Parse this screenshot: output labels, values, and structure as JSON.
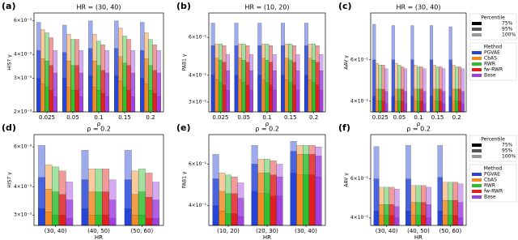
{
  "chart_data": [
    {
      "type": "bar",
      "panel_label": "(a)",
      "title": "HR = (30, 40)",
      "xlabel": "ρ",
      "ylabel": "HIS7 γ",
      "log_scale": true,
      "categories": [
        "0.025",
        "0.05",
        "0.1",
        "0.15",
        "0.2"
      ],
      "ylim": [
        0.002,
        0.0066
      ],
      "yticks": [
        {
          "value": 0.002,
          "label": "2×10⁻³"
        },
        {
          "value": 0.003,
          "label": "3×10⁻³"
        },
        {
          "value": 0.004,
          "label": "4×10⁻³"
        },
        {
          "value": 0.006,
          "label": "6×10⁻³"
        }
      ],
      "series": [
        {
          "name": "PGVAE",
          "color": "#2544d8",
          "values": [
            0.0059,
            0.0057,
            0.006,
            0.006,
            0.0059
          ],
          "p95": [
            0.0042,
            0.0041,
            0.0043,
            0.0043,
            0.0042
          ],
          "p75": [
            0.003,
            0.003,
            0.0031,
            0.0031,
            0.003
          ]
        },
        {
          "name": "CbAS",
          "color": "#f08a24",
          "values": [
            0.0054,
            0.0051,
            0.0051,
            0.0055,
            0.0052
          ],
          "p95": [
            0.0038,
            0.0037,
            0.0037,
            0.0039,
            0.0038
          ],
          "p75": [
            0.0028,
            0.0027,
            0.0027,
            0.0029,
            0.0028
          ]
        },
        {
          "name": "RWR",
          "color": "#2fbf2f",
          "values": [
            0.0052,
            0.0048,
            0.0047,
            0.005,
            0.0048
          ],
          "p95": [
            0.0037,
            0.0035,
            0.0035,
            0.0036,
            0.0035
          ],
          "p75": [
            0.0027,
            0.0026,
            0.0026,
            0.0027,
            0.0026
          ]
        },
        {
          "name": "fw-RWR",
          "color": "#e02020",
          "values": [
            0.0049,
            0.0048,
            0.0045,
            0.0048,
            0.0045
          ],
          "p95": [
            0.0035,
            0.0035,
            0.0033,
            0.0035,
            0.0033
          ],
          "p75": [
            0.0026,
            0.0026,
            0.0025,
            0.0026,
            0.0025
          ]
        },
        {
          "name": "Base",
          "color": "#a040e0",
          "values": [
            0.0042,
            0.0042,
            0.0042,
            0.0042,
            0.0042
          ],
          "p95": [
            0.0032,
            0.0032,
            0.0032,
            0.0032,
            0.0032
          ],
          "p75": [
            0.0024,
            0.0024,
            0.0024,
            0.0024,
            0.0024
          ]
        }
      ]
    },
    {
      "type": "bar",
      "panel_label": "(b)",
      "title": "HR = (10, 20)",
      "xlabel": "ρ",
      "ylabel": "PAB1 γ",
      "log_scale": true,
      "categories": [
        "0.025",
        "0.05",
        "0.1",
        "0.15",
        "0.2"
      ],
      "ylim": [
        0.27,
        0.78
      ],
      "yticks": [
        {
          "value": 0.3,
          "label": "3×10⁻¹"
        },
        {
          "value": 0.4,
          "label": "4×10⁻¹"
        },
        {
          "value": 0.6,
          "label": "6×10⁻¹"
        }
      ],
      "series": [
        {
          "name": "PGVAE",
          "color": "#2544d8",
          "values": [
            0.7,
            0.7,
            0.7,
            0.7,
            0.7
          ],
          "p95": [
            0.55,
            0.55,
            0.55,
            0.55,
            0.55
          ],
          "p75": [
            0.4,
            0.4,
            0.4,
            0.4,
            0.4
          ]
        },
        {
          "name": "CbAS",
          "color": "#f08a24",
          "values": [
            0.56,
            0.56,
            0.56,
            0.56,
            0.56
          ],
          "p95": [
            0.48,
            0.48,
            0.48,
            0.48,
            0.48
          ],
          "p75": [
            0.38,
            0.38,
            0.38,
            0.38,
            0.38
          ]
        },
        {
          "name": "RWR",
          "color": "#2fbf2f",
          "values": [
            0.56,
            0.56,
            0.56,
            0.56,
            0.56
          ],
          "p95": [
            0.47,
            0.47,
            0.47,
            0.47,
            0.47
          ],
          "p75": [
            0.37,
            0.37,
            0.37,
            0.37,
            0.37
          ]
        },
        {
          "name": "fw-RWR",
          "color": "#e02020",
          "values": [
            0.55,
            0.55,
            0.55,
            0.55,
            0.55
          ],
          "p95": [
            0.46,
            0.46,
            0.46,
            0.46,
            0.46
          ],
          "p75": [
            0.36,
            0.36,
            0.36,
            0.36,
            0.36
          ]
        },
        {
          "name": "Base",
          "color": "#a040e0",
          "values": [
            0.5,
            0.5,
            0.5,
            0.5,
            0.5
          ],
          "p95": [
            0.42,
            0.42,
            0.42,
            0.42,
            0.42
          ],
          "p75": [
            0.34,
            0.34,
            0.34,
            0.34,
            0.34
          ]
        }
      ]
    },
    {
      "type": "bar",
      "panel_label": "(c)",
      "title": "HR = (30, 40)",
      "xlabel": "ρ",
      "ylabel": "AAV γ",
      "log_scale": true,
      "legend": "right",
      "legend_title": "Method",
      "percentile_title": "Percentile",
      "percentiles": [
        {
          "label": "75%",
          "color": "#000000"
        },
        {
          "label": "95%",
          "color": "#555555"
        },
        {
          "label": "100%",
          "color": "#999999"
        }
      ],
      "categories": [
        "0.025",
        "0.05",
        "0.1",
        "0.15",
        "0.2"
      ],
      "ylim": [
        0.36,
        0.95
      ],
      "yticks": [
        {
          "value": 0.4,
          "label": "4×10⁻¹"
        },
        {
          "value": 0.6,
          "label": "6×10⁻¹"
        }
      ],
      "series": [
        {
          "name": "PGVAE",
          "color": "#2544d8",
          "values": [
            0.85,
            0.84,
            0.84,
            0.84,
            0.83
          ],
          "p95": [
            0.6,
            0.6,
            0.6,
            0.6,
            0.6
          ],
          "p75": [
            0.42,
            0.42,
            0.42,
            0.42,
            0.42
          ]
        },
        {
          "name": "CbAS",
          "color": "#f08a24",
          "values": [
            0.58,
            0.58,
            0.57,
            0.57,
            0.57
          ],
          "p95": [
            0.45,
            0.45,
            0.45,
            0.45,
            0.45
          ],
          "p75": [
            0.4,
            0.4,
            0.4,
            0.4,
            0.4
          ]
        },
        {
          "name": "RWR",
          "color": "#2fbf2f",
          "values": [
            0.57,
            0.57,
            0.56,
            0.56,
            0.56
          ],
          "p95": [
            0.45,
            0.45,
            0.45,
            0.45,
            0.45
          ],
          "p75": [
            0.4,
            0.4,
            0.4,
            0.4,
            0.4
          ]
        },
        {
          "name": "fw-RWR",
          "color": "#e02020",
          "values": [
            0.57,
            0.56,
            0.56,
            0.56,
            0.56
          ],
          "p95": [
            0.45,
            0.45,
            0.45,
            0.45,
            0.45
          ],
          "p75": [
            0.4,
            0.4,
            0.4,
            0.4,
            0.4
          ]
        },
        {
          "name": "Base",
          "color": "#a040e0",
          "values": [
            0.55,
            0.55,
            0.55,
            0.55,
            0.55
          ],
          "p95": [
            0.44,
            0.44,
            0.44,
            0.44,
            0.44
          ],
          "p75": [
            0.39,
            0.39,
            0.39,
            0.39,
            0.39
          ]
        }
      ]
    },
    {
      "type": "bar",
      "panel_label": "(d)",
      "title": "ρ = 0.2",
      "xlabel": "HR",
      "ylabel": "HIS7 γ",
      "log_scale": true,
      "categories": [
        "(30, 40)",
        "(40, 50)",
        "(50, 60)"
      ],
      "ylim": [
        0.0027,
        0.0068
      ],
      "yticks": [
        {
          "value": 0.003,
          "label": "3×10⁻³"
        },
        {
          "value": 0.004,
          "label": "4×10⁻³"
        },
        {
          "value": 0.006,
          "label": "6×10⁻³"
        }
      ],
      "series": [
        {
          "name": "PGVAE",
          "color": "#2544d8",
          "values": [
            0.0061,
            0.0058,
            0.0058
          ],
          "p95": [
            0.0044,
            0.0043,
            0.0043
          ],
          "p75": [
            0.0032,
            0.0032,
            0.0032
          ]
        },
        {
          "name": "CbAS",
          "color": "#f08a24",
          "values": [
            0.005,
            0.0048,
            0.0047
          ],
          "p95": [
            0.0039,
            0.0038,
            0.0037
          ],
          "p75": [
            0.0031,
            0.003,
            0.003
          ]
        },
        {
          "name": "RWR",
          "color": "#2fbf2f",
          "values": [
            0.0049,
            0.0048,
            0.0048
          ],
          "p95": [
            0.0038,
            0.0038,
            0.0038
          ],
          "p75": [
            0.003,
            0.003,
            0.003
          ]
        },
        {
          "name": "fw-RWR",
          "color": "#e02020",
          "values": [
            0.0047,
            0.0048,
            0.0046
          ],
          "p95": [
            0.0037,
            0.0038,
            0.0036
          ],
          "p75": [
            0.003,
            0.003,
            0.0029
          ]
        },
        {
          "name": "Base",
          "color": "#a040e0",
          "values": [
            0.0042,
            0.0043,
            0.0042
          ],
          "p95": [
            0.0035,
            0.0035,
            0.0035
          ],
          "p75": [
            0.0029,
            0.0029,
            0.0029
          ]
        }
      ]
    },
    {
      "type": "bar",
      "panel_label": "(e)",
      "title": "ρ = 0.2",
      "xlabel": "HR",
      "ylabel": "PAB1 γ",
      "log_scale": true,
      "categories": [
        "(10, 20)",
        "(20, 30)",
        "(30, 40)"
      ],
      "ylim": [
        0.33,
        0.8
      ],
      "yticks": [
        {
          "value": 0.4,
          "label": "4×10⁻¹"
        },
        {
          "value": 0.6,
          "label": "6×10⁻¹"
        }
      ],
      "series": [
        {
          "name": "PGVAE",
          "color": "#2544d8",
          "values": [
            0.66,
            0.72,
            0.75
          ],
          "p95": [
            0.52,
            0.6,
            0.68
          ],
          "p75": [
            0.4,
            0.46,
            0.55
          ]
        },
        {
          "name": "CbAS",
          "color": "#f08a24",
          "values": [
            0.55,
            0.63,
            0.72
          ],
          "p95": [
            0.46,
            0.55,
            0.66
          ],
          "p75": [
            0.38,
            0.45,
            0.54
          ]
        },
        {
          "name": "RWR",
          "color": "#2fbf2f",
          "values": [
            0.54,
            0.63,
            0.72
          ],
          "p95": [
            0.45,
            0.55,
            0.66
          ],
          "p75": [
            0.37,
            0.45,
            0.54
          ]
        },
        {
          "name": "fw-RWR",
          "color": "#e02020",
          "values": [
            0.53,
            0.62,
            0.72
          ],
          "p95": [
            0.45,
            0.54,
            0.66
          ],
          "p75": [
            0.37,
            0.44,
            0.54
          ]
        },
        {
          "name": "Base",
          "color": "#a040e0",
          "values": [
            0.5,
            0.6,
            0.71
          ],
          "p95": [
            0.43,
            0.53,
            0.65
          ],
          "p75": [
            0.36,
            0.44,
            0.53
          ]
        }
      ]
    },
    {
      "type": "bar",
      "panel_label": "(f)",
      "title": "ρ = 0.2",
      "xlabel": "HR",
      "ylabel": "AAV γ",
      "log_scale": true,
      "legend": "right",
      "legend_title": "Method",
      "percentile_title": "Percentile",
      "percentiles": [
        {
          "label": "75%",
          "color": "#000000"
        },
        {
          "label": "95%",
          "color": "#555555"
        },
        {
          "label": "100%",
          "color": "#999999"
        }
      ],
      "categories": [
        "(30, 40)",
        "(40, 50)",
        "(50, 60)"
      ],
      "ylim": [
        0.37,
        0.95
      ],
      "yticks": [
        {
          "value": 0.4,
          "label": "4×10⁻¹"
        },
        {
          "value": 0.6,
          "label": "6×10⁻¹"
        }
      ],
      "series": [
        {
          "name": "PGVAE",
          "color": "#2544d8",
          "values": [
            0.84,
            0.85,
            0.85
          ],
          "p95": [
            0.6,
            0.6,
            0.61
          ],
          "p75": [
            0.43,
            0.43,
            0.43
          ]
        },
        {
          "name": "CbAS",
          "color": "#f08a24",
          "values": [
            0.55,
            0.56,
            0.58
          ],
          "p95": [
            0.46,
            0.47,
            0.48
          ],
          "p75": [
            0.41,
            0.41,
            0.41
          ]
        },
        {
          "name": "RWR",
          "color": "#2fbf2f",
          "values": [
            0.55,
            0.56,
            0.58
          ],
          "p95": [
            0.46,
            0.47,
            0.48
          ],
          "p75": [
            0.41,
            0.41,
            0.41
          ]
        },
        {
          "name": "fw-RWR",
          "color": "#e02020",
          "values": [
            0.55,
            0.56,
            0.58
          ],
          "p95": [
            0.46,
            0.47,
            0.48
          ],
          "p75": [
            0.41,
            0.41,
            0.41
          ]
        },
        {
          "name": "Base",
          "color": "#a040e0",
          "values": [
            0.54,
            0.55,
            0.57
          ],
          "p95": [
            0.45,
            0.46,
            0.47
          ],
          "p75": [
            0.4,
            0.4,
            0.4
          ]
        }
      ]
    }
  ]
}
